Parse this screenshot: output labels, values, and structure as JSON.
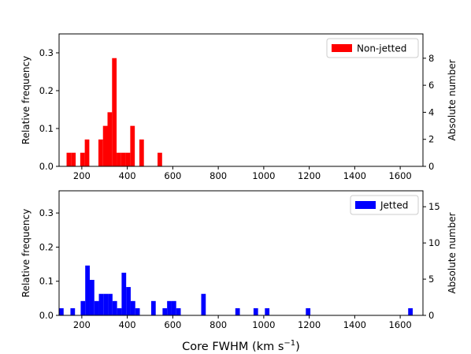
{
  "chart_data": [
    {
      "type": "bar",
      "subtype": "histogram",
      "ylabel": "Relative frequency",
      "y2label": "Absolute number",
      "xlim": [
        100,
        1700
      ],
      "ylim": [
        0,
        0.35
      ],
      "y2lim": [
        0,
        9.8
      ],
      "xticks": [
        "200",
        "400",
        "600",
        "800",
        "1000",
        "1200",
        "1400",
        "1600"
      ],
      "yticks": [
        "0.0",
        "0.1",
        "0.2",
        "0.3"
      ],
      "y2ticks": [
        "0",
        "2",
        "4",
        "6",
        "8"
      ],
      "legend_position": "top-right",
      "series": [
        {
          "name": "Non-jetted",
          "color": "#ff0000",
          "bins": [
            {
              "x0": 133,
              "x1": 153,
              "value": 0.036
            },
            {
              "x0": 153,
              "x1": 173,
              "value": 0.036
            },
            {
              "x0": 193,
              "x1": 213,
              "value": 0.036
            },
            {
              "x0": 213,
              "x1": 233,
              "value": 0.071
            },
            {
              "x0": 273,
              "x1": 293,
              "value": 0.071
            },
            {
              "x0": 293,
              "x1": 313,
              "value": 0.107
            },
            {
              "x0": 313,
              "x1": 333,
              "value": 0.143
            },
            {
              "x0": 333,
              "x1": 353,
              "value": 0.286
            },
            {
              "x0": 353,
              "x1": 373,
              "value": 0.036
            },
            {
              "x0": 373,
              "x1": 393,
              "value": 0.036
            },
            {
              "x0": 393,
              "x1": 413,
              "value": 0.036
            },
            {
              "x0": 413,
              "x1": 433,
              "value": 0.107
            },
            {
              "x0": 453,
              "x1": 473,
              "value": 0.071
            },
            {
              "x0": 533,
              "x1": 553,
              "value": 0.036
            }
          ]
        }
      ]
    },
    {
      "type": "bar",
      "subtype": "histogram",
      "xlabel": "Core FWHM (km s",
      "xlabel_sup": "−1",
      "xlabel_end": ")",
      "ylabel": "Relative frequency",
      "y2label": "Absolute number",
      "xlim": [
        100,
        1700
      ],
      "ylim": [
        0,
        0.365
      ],
      "y2lim": [
        0,
        17.2
      ],
      "xticks": [
        "200",
        "400",
        "600",
        "800",
        "1000",
        "1200",
        "1400",
        "1600"
      ],
      "yticks": [
        "0.0",
        "0.1",
        "0.2",
        "0.3"
      ],
      "y2ticks": [
        "0",
        "5",
        "10",
        "15"
      ],
      "legend_position": "top-right",
      "series": [
        {
          "name": "Jetted",
          "color": "#0000ff",
          "bins": [
            {
              "x0": 100,
              "x1": 120,
              "value": 0.021
            },
            {
              "x0": 150,
              "x1": 170,
              "value": 0.021
            },
            {
              "x0": 195,
              "x1": 215,
              "value": 0.042
            },
            {
              "x0": 215,
              "x1": 235,
              "value": 0.146
            },
            {
              "x0": 235,
              "x1": 255,
              "value": 0.104
            },
            {
              "x0": 255,
              "x1": 275,
              "value": 0.042
            },
            {
              "x0": 275,
              "x1": 295,
              "value": 0.063
            },
            {
              "x0": 295,
              "x1": 315,
              "value": 0.063
            },
            {
              "x0": 315,
              "x1": 335,
              "value": 0.063
            },
            {
              "x0": 335,
              "x1": 355,
              "value": 0.042
            },
            {
              "x0": 355,
              "x1": 375,
              "value": 0.021
            },
            {
              "x0": 375,
              "x1": 395,
              "value": 0.125
            },
            {
              "x0": 395,
              "x1": 415,
              "value": 0.083
            },
            {
              "x0": 415,
              "x1": 435,
              "value": 0.042
            },
            {
              "x0": 435,
              "x1": 455,
              "value": 0.021
            },
            {
              "x0": 505,
              "x1": 525,
              "value": 0.042
            },
            {
              "x0": 555,
              "x1": 575,
              "value": 0.021
            },
            {
              "x0": 575,
              "x1": 595,
              "value": 0.042
            },
            {
              "x0": 595,
              "x1": 615,
              "value": 0.042
            },
            {
              "x0": 615,
              "x1": 635,
              "value": 0.021
            },
            {
              "x0": 725,
              "x1": 745,
              "value": 0.063
            },
            {
              "x0": 875,
              "x1": 895,
              "value": 0.021
            },
            {
              "x0": 955,
              "x1": 975,
              "value": 0.021
            },
            {
              "x0": 1005,
              "x1": 1025,
              "value": 0.021
            },
            {
              "x0": 1185,
              "x1": 1205,
              "value": 0.021
            },
            {
              "x0": 1635,
              "x1": 1655,
              "value": 0.021
            }
          ]
        }
      ]
    }
  ]
}
